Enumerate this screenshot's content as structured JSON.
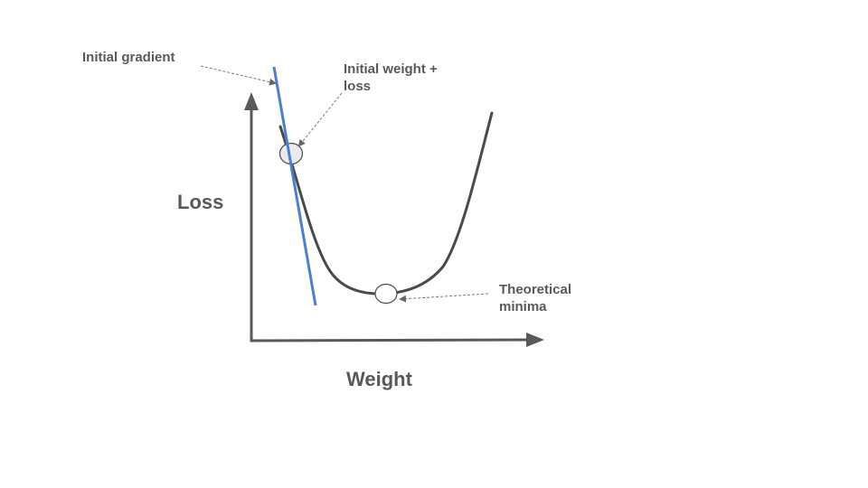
{
  "labels": {
    "y_axis": "Loss",
    "x_axis": "Weight",
    "initial_gradient": "Initial gradient",
    "initial_weight_line1": "Initial weight +",
    "initial_weight_line2": "loss",
    "minima_line1": "Theoretical",
    "minima_line2": "minima"
  },
  "colors": {
    "axis": "#595959",
    "curve": "#4a4a4a",
    "gradient_line": "#4a7fd4",
    "initial_point_fill": "#e8eaed",
    "minima_point_fill": "#ffffff",
    "text": "#595959"
  }
}
